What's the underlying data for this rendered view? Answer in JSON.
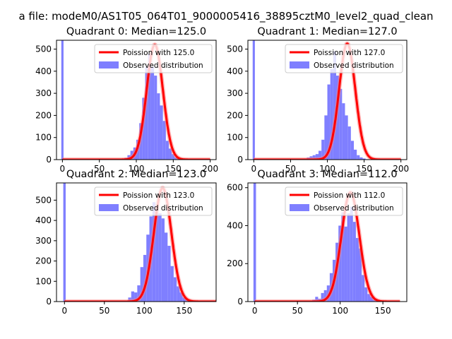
{
  "figure": {
    "suptitle": "a file: modeM0/AS1T05_064T01_9000005416_38895cztM0_level2_quad_clean"
  },
  "colors": {
    "hist": "#7f7fff",
    "poisson": "#ff0000",
    "poisson_glow": "#ff8080",
    "outlier": "#7f7fff"
  },
  "chart_data": [
    {
      "type": "bar",
      "title": "Quadrant 0: Median=125.0",
      "xlim": [
        -8,
        208
      ],
      "ylim": [
        0,
        540
      ],
      "xticks": [
        "0",
        "50",
        "100",
        "150",
        "200"
      ],
      "xtick_values": [
        0,
        50,
        100,
        150,
        200
      ],
      "yticks": [
        "0",
        "100",
        "200",
        "300",
        "400",
        "500"
      ],
      "ytick_values": [
        0,
        100,
        200,
        300,
        400,
        500
      ],
      "bin_width": 4,
      "outlier_bar": {
        "x": 0,
        "value": 540
      },
      "bins_start": 80,
      "values": [
        2,
        8,
        20,
        40,
        55,
        90,
        165,
        280,
        420,
        480,
        420,
        380,
        300,
        245,
        175,
        85,
        50,
        25,
        10,
        5,
        2,
        1
      ],
      "poisson_mean": 125,
      "poisson_peak": 520,
      "poisson_sigma": 11,
      "poisson_range": [
        0,
        200
      ],
      "legend": {
        "position": "top-right",
        "entries": [
          "Poission with 125.0",
          "Observed distribution"
        ]
      }
    },
    {
      "type": "bar",
      "title": "Quadrant 1: Median=127.0",
      "xlim": [
        -8,
        208
      ],
      "ylim": [
        0,
        540
      ],
      "xticks": [
        "0",
        "50",
        "100",
        "150",
        "200"
      ],
      "xtick_values": [
        0,
        50,
        100,
        150,
        200
      ],
      "yticks": [
        "0",
        "100",
        "200",
        "300",
        "400",
        "500"
      ],
      "ytick_values": [
        0,
        100,
        200,
        300,
        400,
        500
      ],
      "bin_width": 4,
      "outlier_bar": {
        "x": 0,
        "value": 540
      },
      "bins_start": 68,
      "values": [
        5,
        10,
        15,
        20,
        25,
        40,
        90,
        200,
        340,
        410,
        490,
        380,
        320,
        255,
        200,
        150,
        85,
        45,
        20,
        10,
        5,
        2
      ],
      "poisson_mean": 127,
      "poisson_peak": 525,
      "poisson_sigma": 11,
      "poisson_range": [
        0,
        200
      ],
      "legend": {
        "position": "top-right",
        "entries": [
          "Poission with 127.0",
          "Observed distribution"
        ]
      }
    },
    {
      "type": "bar",
      "title": "Quadrant 2: Median=123.0",
      "xlim": [
        -10,
        190
      ],
      "ylim": [
        0,
        585
      ],
      "xticks": [
        "0",
        "50",
        "100",
        "150"
      ],
      "xtick_values": [
        0,
        50,
        100,
        150
      ],
      "yticks": [
        "0",
        "100",
        "200",
        "300",
        "400",
        "500"
      ],
      "ytick_values": [
        0,
        100,
        200,
        300,
        400,
        500
      ],
      "bin_width": 3.8,
      "outlier_bar": {
        "x": 0,
        "value": 585
      },
      "bins_start": 76,
      "values": [
        5,
        20,
        50,
        45,
        80,
        170,
        230,
        330,
        420,
        490,
        440,
        435,
        410,
        340,
        275,
        175,
        120,
        75,
        45,
        20,
        10,
        5,
        2
      ],
      "poisson_mean": 123,
      "poisson_peak": 560,
      "poisson_sigma": 11,
      "poisson_range": [
        0,
        190
      ],
      "legend": {
        "position": "top-right",
        "entries": [
          "Poission with 123.0",
          "Observed distribution"
        ]
      }
    },
    {
      "type": "bar",
      "title": "Quadrant 3: Median=112.0",
      "xlim": [
        -8,
        178
      ],
      "ylim": [
        0,
        625
      ],
      "xticks": [
        "0",
        "50",
        "100",
        "150"
      ],
      "xtick_values": [
        0,
        50,
        100,
        150
      ],
      "yticks": [
        "0",
        "200",
        "400",
        "600"
      ],
      "ytick_values": [
        0,
        200,
        400,
        600
      ],
      "bin_width": 3.4,
      "outlier_bar": {
        "x": 0,
        "value": 625
      },
      "bins_start": 64,
      "values": [
        5,
        10,
        25,
        15,
        45,
        60,
        85,
        150,
        220,
        310,
        400,
        470,
        395,
        465,
        500,
        420,
        335,
        280,
        140,
        75,
        40,
        25,
        10,
        5,
        2
      ],
      "poisson_mean": 112,
      "poisson_peak": 575,
      "poisson_sigma": 10.5,
      "poisson_range": [
        0,
        170
      ],
      "legend": {
        "position": "top-right",
        "entries": [
          "Poission with 112.0",
          "Observed distribution"
        ]
      }
    }
  ]
}
